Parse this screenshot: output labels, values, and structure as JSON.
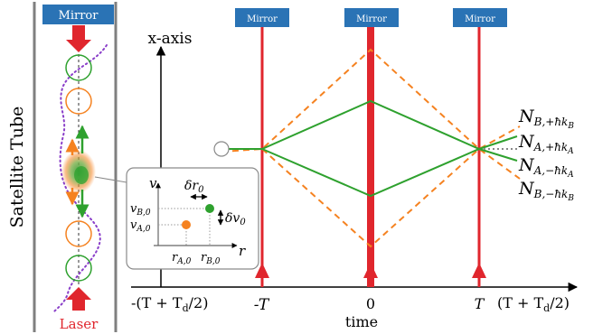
{
  "colors": {
    "mirror_box": "#2A73B5",
    "mirror_text": "#ffffff",
    "laser_red": "#E0262D",
    "path_green": "#2EA12E",
    "path_orange": "#F58220",
    "atom_dot_green": "#2EA12E",
    "atom_dot_orange": "#F58220",
    "dotted_purple": "#8A3FC9",
    "axis": "#000000",
    "tube_wall": "#7f7f7f",
    "inset_border": "#8a8a8a",
    "laser_label": "#E0262D"
  },
  "satellite_tube": {
    "label": "Satellite Tube",
    "mirror_label": "Mirror",
    "laser_label": "Laser"
  },
  "diagram": {
    "y_axis_label": "x-axis",
    "x_axis_label": "time",
    "mirror_labels": [
      "Mirror",
      "Mirror",
      "Mirror"
    ],
    "ticks": {
      "left_outer": "-(T + T",
      "left_outer_sub": "d",
      "left_outer_end": "/2)",
      "minus_T": "-T",
      "zero": "0",
      "T": "T",
      "right_outer": "(T + T",
      "right_outer_sub": "d",
      "right_outer_end": "/2)"
    },
    "output_labels": [
      {
        "main": "N",
        "sub": "B,+ħk",
        "subsub": "B"
      },
      {
        "main": "N",
        "sub": "A,+ħk",
        "subsub": "A"
      },
      {
        "main": "N",
        "sub": "A,−ħk",
        "subsub": "A"
      },
      {
        "main": "N",
        "sub": "B,−ħk",
        "subsub": "B"
      }
    ]
  },
  "inset": {
    "v_axis": "v",
    "r_axis": "r",
    "v_B0": {
      "main": "v",
      "sub": "B,0"
    },
    "v_A0": {
      "main": "v",
      "sub": "A,0"
    },
    "r_A0": {
      "main": "r",
      "sub": "A,0"
    },
    "r_B0": {
      "main": "r",
      "sub": "B,0"
    },
    "delta_r0": {
      "main": "δr",
      "sub": "0"
    },
    "delta_v0": {
      "main": "δv",
      "sub": "0"
    }
  }
}
